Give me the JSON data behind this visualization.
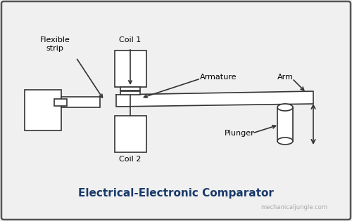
{
  "title": "Electrical-Electronic Comparator",
  "watermark": "mechanicaljungle.com",
  "bg_color": "#f0f0f0",
  "border_color": "#555555",
  "line_color": "#333333",
  "labels": {
    "flexible_strip": "Flexible\nstrip",
    "coil1": "Coil 1",
    "coil2": "Coil 2",
    "armature": "Armature",
    "arm": "Arm",
    "plunger": "Plunger"
  },
  "title_color": "#1a3a6b",
  "watermark_color": "#aaaaaa"
}
